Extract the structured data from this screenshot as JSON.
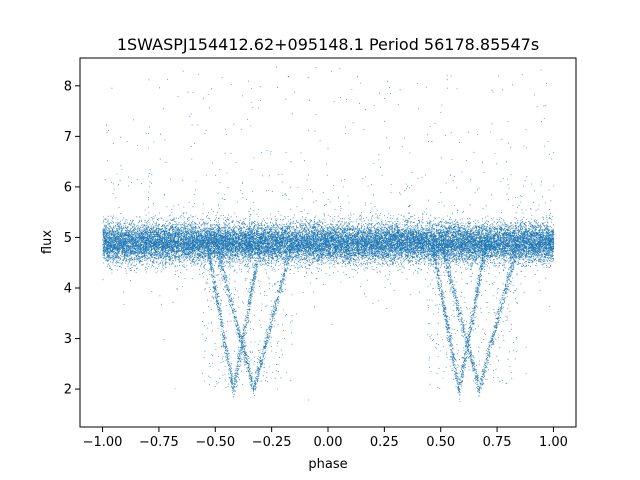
{
  "chart_data": {
    "type": "scatter",
    "title": "1SWASPJ154412.62+095148.1 Period 56178.85547s",
    "xlabel": "phase",
    "ylabel": "flux",
    "xlim": [
      -1.1,
      1.1
    ],
    "ylim": [
      1.25,
      8.55
    ],
    "xticks": [
      -1.0,
      -0.75,
      -0.5,
      -0.25,
      0.0,
      0.25,
      0.5,
      0.75,
      1.0
    ],
    "xtick_labels": [
      "−1.00",
      "−0.75",
      "−0.50",
      "−0.25",
      "0.00",
      "0.25",
      "0.50",
      "0.75",
      "1.00"
    ],
    "yticks": [
      2,
      3,
      4,
      5,
      6,
      7,
      8
    ],
    "ytick_labels": [
      "2",
      "3",
      "4",
      "5",
      "6",
      "7",
      "8"
    ],
    "grid": false,
    "marker_color": "#1f77b4",
    "series": [
      {
        "baseline_flux": 4.9,
        "x_range": [
          -1.0,
          1.0
        ],
        "eclipses": [
          {
            "center_phase": -0.42,
            "ingress_phase": -0.56,
            "egress_phase": -0.16,
            "min_flux": 2.0,
            "min_flux_phase": -0.33
          },
          {
            "center_phase": 0.58,
            "ingress_phase": 0.44,
            "egress_phase": 0.84,
            "min_flux": 2.0,
            "min_flux_phase": 0.67
          }
        ]
      }
    ]
  }
}
